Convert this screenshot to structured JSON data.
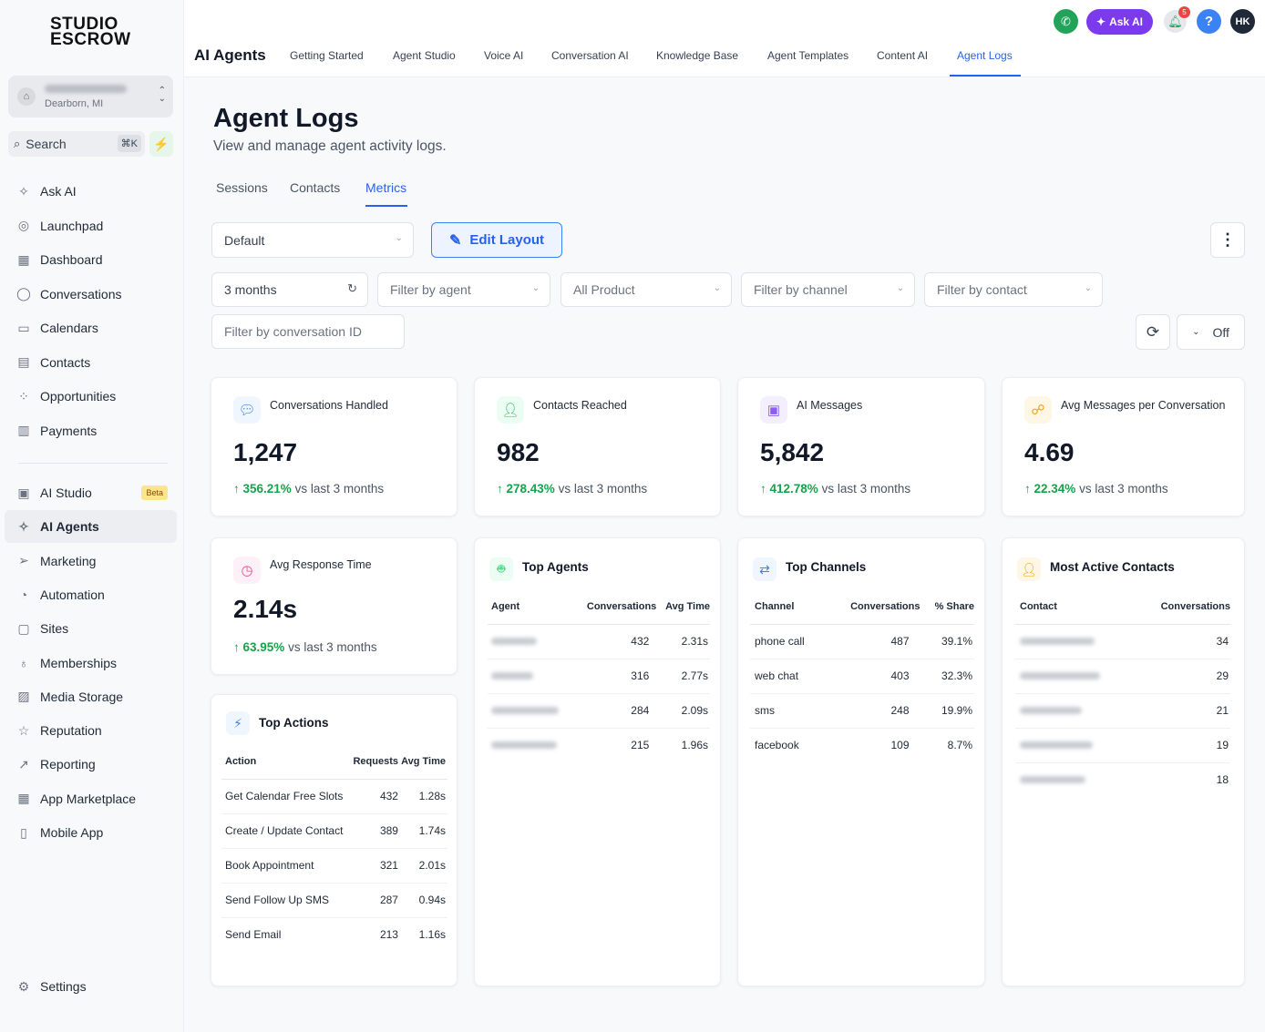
{
  "brand": {
    "line1": "STUDIO",
    "line2": "ESCROW"
  },
  "location": {
    "city": "Dearborn, MI"
  },
  "search": {
    "label": "Search",
    "shortcut": "⌘K"
  },
  "sidebar": {
    "items": [
      {
        "label": "Ask AI",
        "icon": "sparkle-icon"
      },
      {
        "label": "Launchpad",
        "icon": "rocket-icon"
      },
      {
        "label": "Dashboard",
        "icon": "grid-icon"
      },
      {
        "label": "Conversations",
        "icon": "chat-icon"
      },
      {
        "label": "Calendars",
        "icon": "calendar-icon"
      },
      {
        "label": "Contacts",
        "icon": "contacts-icon"
      },
      {
        "label": "Opportunities",
        "icon": "opportunities-icon"
      },
      {
        "label": "Payments",
        "icon": "receipt-icon"
      }
    ],
    "items2": [
      {
        "label": "AI Studio",
        "icon": "ai-studio-icon",
        "badge": "Beta"
      },
      {
        "label": "AI Agents",
        "icon": "sparkle-icon"
      },
      {
        "label": "Marketing",
        "icon": "send-icon"
      },
      {
        "label": "Automation",
        "icon": "automation-icon"
      },
      {
        "label": "Sites",
        "icon": "sites-icon"
      },
      {
        "label": "Memberships",
        "icon": "award-icon"
      },
      {
        "label": "Media Storage",
        "icon": "image-icon"
      },
      {
        "label": "Reputation",
        "icon": "star-icon"
      },
      {
        "label": "Reporting",
        "icon": "trend-icon"
      },
      {
        "label": "App Marketplace",
        "icon": "apps-icon"
      },
      {
        "label": "Mobile App",
        "icon": "mobile-icon"
      }
    ],
    "settings": "Settings"
  },
  "topbar": {
    "title": "AI Agents",
    "tabs": [
      "Getting Started",
      "Agent Studio",
      "Voice AI",
      "Conversation AI",
      "Knowledge Base",
      "Agent Templates",
      "Content AI",
      "Agent Logs"
    ],
    "ask_ai": "Ask AI",
    "notifications": "5",
    "help": "?",
    "user_initials": "HK"
  },
  "page": {
    "title": "Agent Logs",
    "subtitle": "View and manage agent activity logs.",
    "tabs": [
      "Sessions",
      "Contacts",
      "Metrics"
    ]
  },
  "controls": {
    "layout_select": "Default",
    "edit_layout": "Edit Layout",
    "range": "3 months",
    "filter_agent": "Filter by agent",
    "product": "All Product",
    "filter_channel": "Filter by channel",
    "filter_contact": "Filter by contact",
    "filter_conversation": "Filter by conversation ID",
    "auto_refresh": "Off"
  },
  "stats": [
    {
      "label": "Conversations Handled",
      "value": "1,247",
      "delta": "356.21%",
      "suffix": "vs last 3 months",
      "color": "#3b82f6"
    },
    {
      "label": "Contacts Reached",
      "value": "982",
      "delta": "278.43%",
      "suffix": "vs last 3 months",
      "color": "#22c55e"
    },
    {
      "label": "AI Messages",
      "value": "5,842",
      "delta": "412.78%",
      "suffix": "vs last 3 months",
      "color": "#8b5cf6"
    },
    {
      "label": "Avg Messages per Conversation",
      "value": "4.69",
      "delta": "22.34%",
      "suffix": "vs last 3 months",
      "color": "#f59e0b"
    },
    {
      "label": "Avg Response Time",
      "value": "2.14s",
      "delta": "63.95%",
      "suffix": "vs last 3 months",
      "color": "#ec4899"
    }
  ],
  "top_actions": {
    "title": "Top Actions",
    "headers": [
      "Action",
      "Requests",
      "Avg Time"
    ],
    "rows": [
      [
        "Get Calendar Free Slots",
        "432",
        "1.28s"
      ],
      [
        "Create / Update Contact",
        "389",
        "1.74s"
      ],
      [
        "Book Appointment",
        "321",
        "2.01s"
      ],
      [
        "Send Follow Up SMS",
        "287",
        "0.94s"
      ],
      [
        "Send Email",
        "213",
        "1.16s"
      ]
    ]
  },
  "top_agents": {
    "title": "Top Agents",
    "headers": [
      "Agent",
      "Conversations",
      "Avg Time"
    ],
    "rows": [
      [
        "432",
        "2.31s"
      ],
      [
        "316",
        "2.77s"
      ],
      [
        "284",
        "2.09s"
      ],
      [
        "215",
        "1.96s"
      ]
    ]
  },
  "top_channels": {
    "title": "Top Channels",
    "headers": [
      "Channel",
      "Conversations",
      "% Share"
    ],
    "rows": [
      [
        "phone call",
        "487",
        "39.1%"
      ],
      [
        "web chat",
        "403",
        "32.3%"
      ],
      [
        "sms",
        "248",
        "19.9%"
      ],
      [
        "facebook",
        "109",
        "8.7%"
      ]
    ]
  },
  "active_contacts": {
    "title": "Most Active Contacts",
    "headers": [
      "Contact",
      "Conversations"
    ],
    "rows": [
      "34",
      "29",
      "21",
      "19",
      "18"
    ]
  }
}
